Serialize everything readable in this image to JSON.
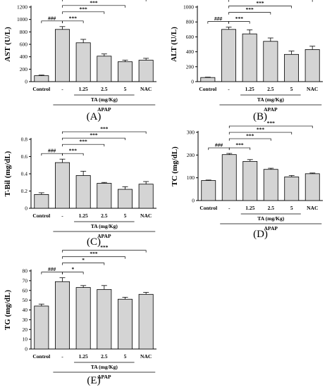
{
  "labels": {
    "apap": "APAP",
    "ta": "TA (mg/Kg)"
  },
  "chart_data": [
    {
      "type": "bar",
      "panel": "(A)",
      "ylabel": "AST (U/L)",
      "ylim": [
        0,
        1200
      ],
      "yticks": [
        0,
        200,
        400,
        600,
        800,
        1000,
        1200
      ],
      "categories": [
        "Control",
        "-",
        "1.25",
        "2.5",
        "5",
        "NAC"
      ],
      "values": [
        95,
        840,
        625,
        410,
        320,
        345
      ],
      "errors": [
        10,
        45,
        55,
        35,
        25,
        30
      ],
      "sig": [
        {
          "to": 0,
          "label": "###"
        },
        {
          "to": 2,
          "label": "***"
        },
        {
          "to": 3,
          "label": "***"
        },
        {
          "to": 4,
          "label": "***"
        },
        {
          "to": 5,
          "label": "***"
        }
      ]
    },
    {
      "type": "bar",
      "panel": "(B)",
      "ylabel": "ALT (U/L)",
      "ylim": [
        0,
        1000
      ],
      "yticks": [
        0,
        200,
        400,
        600,
        800,
        1000
      ],
      "categories": [
        "Control",
        "-",
        "1.25",
        "2.5",
        "5",
        "NAC"
      ],
      "values": [
        55,
        700,
        640,
        540,
        365,
        430
      ],
      "errors": [
        5,
        30,
        55,
        45,
        45,
        45
      ],
      "sig": [
        {
          "to": 0,
          "label": "###"
        },
        {
          "to": 2,
          "label": "***"
        },
        {
          "to": 3,
          "label": "***"
        },
        {
          "to": 4,
          "label": "***"
        },
        {
          "to": 5,
          "label": "***"
        }
      ]
    },
    {
      "type": "bar",
      "panel": "(C)",
      "ylabel": "T-Bil (mg/dL)",
      "ylim": [
        0,
        0.8
      ],
      "yticks": [
        0,
        0.2,
        0.4,
        0.6,
        0.8
      ],
      "categories": [
        "Control",
        "-",
        "1.25",
        "2.5",
        "5",
        "NAC"
      ],
      "values": [
        0.16,
        0.53,
        0.38,
        0.29,
        0.22,
        0.28
      ],
      "errors": [
        0.02,
        0.04,
        0.05,
        0.01,
        0.03,
        0.03
      ],
      "sig": [
        {
          "to": 0,
          "label": "###"
        },
        {
          "to": 2,
          "label": "***"
        },
        {
          "to": 3,
          "label": "***"
        },
        {
          "to": 4,
          "label": "***"
        },
        {
          "to": 5,
          "label": "***"
        }
      ]
    },
    {
      "type": "bar",
      "panel": "(D)",
      "ylabel": "TC (mg/dL)",
      "ylim": [
        0,
        300
      ],
      "yticks": [
        0,
        100,
        200,
        300
      ],
      "categories": [
        "Control",
        "-",
        "1.25",
        "2.5",
        "5",
        "NAC"
      ],
      "values": [
        88,
        202,
        172,
        137,
        104,
        118
      ],
      "errors": [
        2,
        5,
        8,
        5,
        6,
        3
      ],
      "sig": [
        {
          "to": 0,
          "label": "###"
        },
        {
          "to": 2,
          "label": "***"
        },
        {
          "to": 3,
          "label": "***"
        },
        {
          "to": 4,
          "label": "***"
        },
        {
          "to": 5,
          "label": "***"
        }
      ]
    },
    {
      "type": "bar",
      "panel": "(E)",
      "ylabel": "TG (mg/dL)",
      "ylim": [
        0,
        80
      ],
      "yticks": [
        0,
        10,
        20,
        30,
        40,
        50,
        60,
        70,
        80
      ],
      "categories": [
        "Control",
        "-",
        "1.25",
        "2.5",
        "5",
        "NAC"
      ],
      "values": [
        44,
        69,
        63,
        61,
        51,
        56
      ],
      "errors": [
        2,
        4,
        2,
        4,
        2,
        2
      ],
      "sig": [
        {
          "to": 0,
          "label": "###"
        },
        {
          "to": 2,
          "label": "*"
        },
        {
          "to": 3,
          "label": "*"
        },
        {
          "to": 4,
          "label": "***"
        },
        {
          "to": 5,
          "label": "***"
        }
      ]
    }
  ]
}
